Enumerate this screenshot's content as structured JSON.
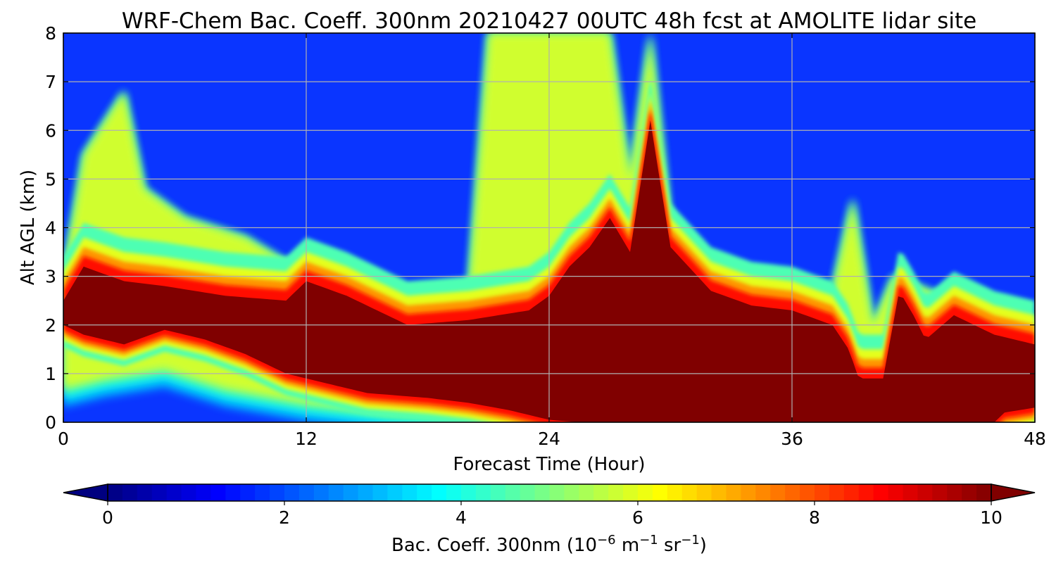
{
  "chart_data": {
    "type": "heatmap",
    "title": "WRF-Chem Bac. Coeff. 300nm  20210427 00UTC 48h fcst at AMOLITE lidar site",
    "xlabel": "Forecast Time (Hour)",
    "ylabel": "Alt AGL (km)",
    "xlim": [
      0,
      48
    ],
    "ylim": [
      0,
      8
    ],
    "xticks": [
      0,
      12,
      24,
      36,
      48
    ],
    "yticks": [
      0,
      1,
      2,
      3,
      4,
      5,
      6,
      7,
      8
    ],
    "grid": true,
    "colormap": "jet",
    "colorbar": {
      "label_prefix": "Bac. Coeff. 300nm  (10",
      "label_exp1": "−6",
      "label_mid": " m",
      "label_exp2": "−1",
      "label_mid2": " sr",
      "label_exp3": "−1",
      "label_suffix": ")",
      "min": 0,
      "max": 10,
      "ticks": [
        0,
        2,
        4,
        6,
        8,
        10
      ],
      "extend": "both"
    },
    "field_description": {
      "dense_layer": {
        "value": 10,
        "top_km": [
          [
            0,
            2.5
          ],
          [
            1,
            3.2
          ],
          [
            3,
            2.9
          ],
          [
            5,
            2.8
          ],
          [
            8,
            2.6
          ],
          [
            11,
            2.5
          ],
          [
            12,
            2.9
          ],
          [
            14,
            2.6
          ],
          [
            17,
            2.0
          ],
          [
            20,
            2.1
          ],
          [
            23,
            2.3
          ],
          [
            24,
            2.6
          ],
          [
            25,
            3.2
          ],
          [
            26,
            3.6
          ],
          [
            27,
            4.2
          ],
          [
            28,
            3.5
          ],
          [
            29,
            6.2
          ],
          [
            30,
            3.6
          ],
          [
            32,
            2.7
          ],
          [
            34,
            2.4
          ],
          [
            36,
            2.3
          ],
          [
            38,
            2.0
          ],
          [
            38.8,
            1.5
          ],
          [
            39.3,
            0.9
          ],
          [
            40.5,
            0.9
          ],
          [
            41.3,
            2.7
          ],
          [
            42,
            2.2
          ],
          [
            42.6,
            1.7
          ],
          [
            44,
            2.2
          ],
          [
            46,
            1.8
          ],
          [
            48,
            1.6
          ]
        ],
        "bottom_km": [
          [
            0,
            2.0
          ],
          [
            1,
            1.8
          ],
          [
            3,
            1.6
          ],
          [
            5,
            1.9
          ],
          [
            7,
            1.7
          ],
          [
            9,
            1.4
          ],
          [
            11,
            1.0
          ],
          [
            13,
            0.8
          ],
          [
            15,
            0.6
          ],
          [
            18,
            0.5
          ],
          [
            20,
            0.4
          ],
          [
            22,
            0.25
          ],
          [
            24,
            0.05
          ],
          [
            25.5,
            0
          ],
          [
            46,
            0
          ],
          [
            46.5,
            0.2
          ],
          [
            48,
            0.3
          ]
        ]
      },
      "aerosol_envelope_top_km": [
        [
          0,
          3.0
        ],
        [
          1,
          5.5
        ],
        [
          3,
          6.8
        ],
        [
          4,
          4.8
        ],
        [
          6,
          4.2
        ],
        [
          9,
          3.8
        ],
        [
          11,
          3.3
        ],
        [
          12,
          3.2
        ],
        [
          15,
          2.8
        ],
        [
          18,
          2.5
        ],
        [
          20,
          2.6
        ],
        [
          21,
          8
        ],
        [
          27,
          8
        ],
        [
          28,
          5.0
        ],
        [
          29,
          8
        ],
        [
          30,
          4.0
        ],
        [
          32,
          3.0
        ],
        [
          36,
          2.6
        ],
        [
          38,
          2.7
        ],
        [
          39,
          4.6
        ],
        [
          40,
          2.0
        ],
        [
          41,
          3.0
        ],
        [
          44,
          2.5
        ],
        [
          46,
          2.2
        ],
        [
          48,
          2.1
        ]
      ],
      "aerosol_envelope_bottom_km": [
        [
          0,
          0.8
        ],
        [
          2,
          1.0
        ],
        [
          5,
          1.2
        ],
        [
          8,
          0.8
        ],
        [
          12,
          0.5
        ],
        [
          16,
          0.3
        ],
        [
          20,
          0.2
        ],
        [
          22,
          0.0
        ],
        [
          48,
          0.0
        ]
      ]
    }
  }
}
